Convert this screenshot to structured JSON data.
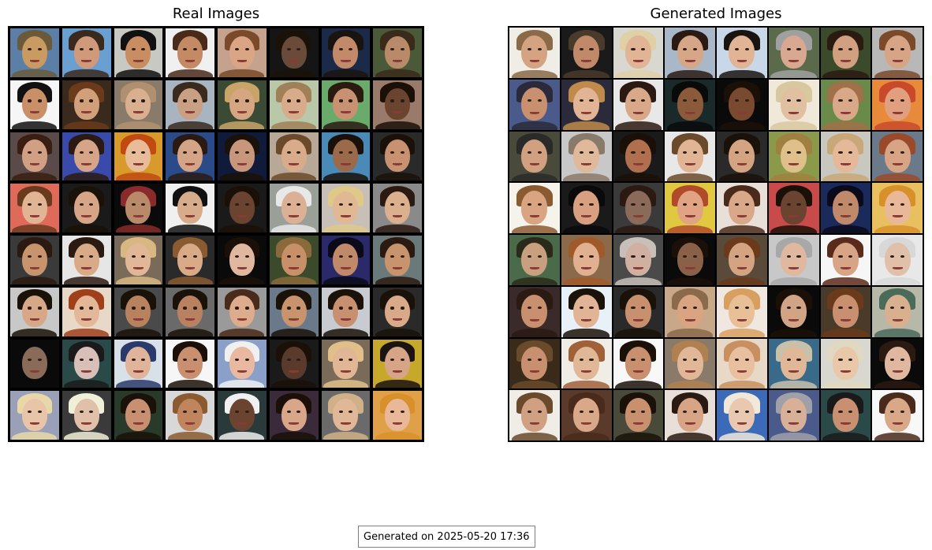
{
  "panels": {
    "real": {
      "title": "Real Images",
      "rows": 8,
      "cols": 8,
      "cells": [
        {
          "bg": "#5b7fa6",
          "skin": "#c99a62",
          "hair": "#6a5a3a"
        },
        {
          "bg": "#6a9fd1",
          "skin": "#d09a7a",
          "hair": "#3a2a1e"
        },
        {
          "bg": "#c9c9c4",
          "skin": "#c98d62",
          "hair": "#111111"
        },
        {
          "bg": "#f0f0f0",
          "skin": "#c38a64",
          "hair": "#4a2a1a"
        },
        {
          "bg": "#c4a28e",
          "skin": "#d9a584",
          "hair": "#7a4a2a"
        },
        {
          "bg": "#151515",
          "skin": "#6a4a38",
          "hair": "#1a1208"
        },
        {
          "bg": "#1c2a4a",
          "skin": "#c38a6a",
          "hair": "#1a1410"
        },
        {
          "bg": "#4a5a38",
          "skin": "#b88a6a",
          "hair": "#3a2a1a"
        },
        {
          "bg": "#f6f6f6",
          "skin": "#c98f66",
          "hair": "#111111"
        },
        {
          "bg": "#3a2a1e",
          "skin": "#d1a07a",
          "hair": "#6a3a1a"
        },
        {
          "bg": "#8a7a6a",
          "skin": "#d8b090",
          "hair": "#b09070"
        },
        {
          "bg": "#a8b4c0",
          "skin": "#c9a084",
          "hair": "#3a2a1e"
        },
        {
          "bg": "#3a4a34",
          "skin": "#d6a682",
          "hair": "#c9a468"
        },
        {
          "bg": "#b8c8a8",
          "skin": "#d8ac8a",
          "hair": "#a08058"
        },
        {
          "bg": "#6aaa6a",
          "skin": "#c89272",
          "hair": "#2a1a10"
        },
        {
          "bg": "#9a7a6a",
          "skin": "#6a442e",
          "hair": "#1a1008"
        },
        {
          "bg": "#5a4a4a",
          "skin": "#d1a084",
          "hair": "#3a1e12"
        },
        {
          "bg": "#3a4aaa",
          "skin": "#d6a486",
          "hair": "#2a1a12"
        },
        {
          "bg": "#d89a2a",
          "skin": "#e8bc98",
          "hair": "#c04a12"
        },
        {
          "bg": "#2a4a8a",
          "skin": "#d4a486",
          "hair": "#2a1a12"
        },
        {
          "bg": "#101a3a",
          "skin": "#c8967a",
          "hair": "#1a1208"
        },
        {
          "bg": "#b8a898",
          "skin": "#d8ac8a",
          "hair": "#6a4a2a"
        },
        {
          "bg": "#4a8ab8",
          "skin": "#9a6a4a",
          "hair": "#1a1008"
        },
        {
          "bg": "#2a2a2a",
          "skin": "#c89272",
          "hair": "#1a1208"
        },
        {
          "bg": "#e06a5a",
          "skin": "#e0b494",
          "hair": "#6a3a1e"
        },
        {
          "bg": "#1a1a1a",
          "skin": "#d6a486",
          "hair": "#1a1208"
        },
        {
          "bg": "#0a0a0a",
          "skin": "#b88a6a",
          "hair": "#8a2a2a"
        },
        {
          "bg": "#f0f0f0",
          "skin": "#d6ac8a",
          "hair": "#111111"
        },
        {
          "bg": "#1a1a1a",
          "skin": "#6a4430",
          "hair": "#1a1008"
        },
        {
          "bg": "#9aa098",
          "skin": "#dcb094",
          "hair": "#e8e8e8"
        },
        {
          "bg": "#c8c0b8",
          "skin": "#e0b894",
          "hair": "#e0c888"
        },
        {
          "bg": "#8a8a8a",
          "skin": "#dab08e",
          "hair": "#2a1a12"
        },
        {
          "bg": "#3a3a3a",
          "skin": "#c8946e",
          "hair": "#2a1a12"
        },
        {
          "bg": "#e6e6e6",
          "skin": "#d8aa88",
          "hair": "#2a1a12"
        },
        {
          "bg": "#7a6a5a",
          "skin": "#e0b898",
          "hair": "#d8b880"
        },
        {
          "bg": "#2a2a2a",
          "skin": "#d8aa88",
          "hair": "#8a5a30"
        },
        {
          "bg": "#0a0a0a",
          "skin": "#e0b8a0",
          "hair": "#1a1008"
        },
        {
          "bg": "#3a4a2a",
          "skin": "#c89068",
          "hair": "#8a6a3a"
        },
        {
          "bg": "#2a2a6a",
          "skin": "#c08a6a",
          "hair": "#0a0a18"
        },
        {
          "bg": "#6a7a7a",
          "skin": "#c8946e",
          "hair": "#2a1a12"
        },
        {
          "bg": "#c8c8c8",
          "skin": "#d6a888",
          "hair": "#1a1208"
        },
        {
          "bg": "#e8d8c8",
          "skin": "#e2b898",
          "hair": "#a0401a"
        },
        {
          "bg": "#4a4a4a",
          "skin": "#b8825e",
          "hair": "#1a1208"
        },
        {
          "bg": "#6a6a6a",
          "skin": "#b88262",
          "hair": "#1a1208"
        },
        {
          "bg": "#9a9a9a",
          "skin": "#dcac8c",
          "hair": "#4a2a1a"
        },
        {
          "bg": "#6a7a8a",
          "skin": "#c8946e",
          "hair": "#1a1208"
        },
        {
          "bg": "#c8ccd0",
          "skin": "#c89070",
          "hair": "#1a1208"
        },
        {
          "bg": "#2a2a2a",
          "skin": "#d8aa8a",
          "hair": "#1a1208"
        },
        {
          "bg": "#0a0a0a",
          "skin": "#8a6a58",
          "hair": "#0a0a0a"
        },
        {
          "bg": "#2a4a4a",
          "skin": "#d8c0b8",
          "hair": "#1a1a1a"
        },
        {
          "bg": "#d8e0e8",
          "skin": "#e0b49a",
          "hair": "#2a3a6a"
        },
        {
          "bg": "#f6f6f6",
          "skin": "#c89070",
          "hair": "#1a1008"
        },
        {
          "bg": "#8aa0c8",
          "skin": "#e8b8a0",
          "hair": "#f0f0f0"
        },
        {
          "bg": "#1a1a1a",
          "skin": "#5a3a2a",
          "hair": "#1a1008"
        },
        {
          "bg": "#7a6a5a",
          "skin": "#e0b694",
          "hair": "#e0c088"
        },
        {
          "bg": "#c8a82a",
          "skin": "#d6a486",
          "hair": "#1a1410"
        },
        {
          "bg": "#9aa0b8",
          "skin": "#e8c4a8",
          "hair": "#e8d8a8"
        },
        {
          "bg": "#3a3a3a",
          "skin": "#e0c0a8",
          "hair": "#f0f0d8"
        },
        {
          "bg": "#2a3a2a",
          "skin": "#c89070",
          "hair": "#1a1208"
        },
        {
          "bg": "#d8d8d8",
          "skin": "#c0845e",
          "hair": "#8a5a30"
        },
        {
          "bg": "#2a3a3a",
          "skin": "#6a4430",
          "hair": "#f0f0f0"
        },
        {
          "bg": "#3a2a3a",
          "skin": "#d8a688",
          "hair": "#1a1008"
        },
        {
          "bg": "#6a6a6a",
          "skin": "#e0b898",
          "hair": "#d0b088"
        },
        {
          "bg": "#e0a048",
          "skin": "#e8b898",
          "hair": "#d8902a"
        }
      ]
    },
    "generated": {
      "title": "Generated Images",
      "rows": 8,
      "cols": 8,
      "cells": [
        {
          "bg": "#f0ece6",
          "skin": "#d4a482",
          "hair": "#8a6a48"
        },
        {
          "bg": "#1a1a1a",
          "skin": "#c08a6a",
          "hair": "#4a3a2a"
        },
        {
          "bg": "#d8d8d0",
          "skin": "#e0b494",
          "hair": "#e0d0a8"
        },
        {
          "bg": "#a8b8c8",
          "skin": "#d6a688",
          "hair": "#2a1a12"
        },
        {
          "bg": "#c8d8e8",
          "skin": "#e0b494",
          "hair": "#1a1410"
        },
        {
          "bg": "#5a6a4a",
          "skin": "#d8a890",
          "hair": "#a0a0a0"
        },
        {
          "bg": "#3a4a2a",
          "skin": "#d0a080",
          "hair": "#2a1a10"
        },
        {
          "bg": "#b8b8b8",
          "skin": "#d8a486",
          "hair": "#7a4a2a"
        },
        {
          "bg": "#4a5a8a",
          "skin": "#c8906e",
          "hair": "#2a2a3a"
        },
        {
          "bg": "#2a2a3a",
          "skin": "#e0b494",
          "hair": "#c08a4a"
        },
        {
          "bg": "#e8e8e8",
          "skin": "#d8a888",
          "hair": "#2a1a12"
        },
        {
          "bg": "#1a2a2a",
          "skin": "#8a5a3a",
          "hair": "#0a0a0a"
        },
        {
          "bg": "#0a0a0a",
          "skin": "#7a4a30",
          "hair": "#1a1008"
        },
        {
          "bg": "#f0e8d8",
          "skin": "#e0c0a0",
          "hair": "#d8c8a0"
        },
        {
          "bg": "#6a8a4a",
          "skin": "#d8a888",
          "hair": "#a07048"
        },
        {
          "bg": "#e88a3a",
          "skin": "#e0a080",
          "hair": "#c84a2a"
        },
        {
          "bg": "#4a4a3a",
          "skin": "#d0a080",
          "hair": "#2a2a2a"
        },
        {
          "bg": "#c8c8c8",
          "skin": "#e0b89a",
          "hair": "#8a7a6a"
        },
        {
          "bg": "#1a1a1a",
          "skin": "#b07050",
          "hair": "#1a1008"
        },
        {
          "bg": "#e8e8e8",
          "skin": "#e0b494",
          "hair": "#6a4a2a"
        },
        {
          "bg": "#2a2a2a",
          "skin": "#d4a482",
          "hair": "#1a1208"
        },
        {
          "bg": "#8a9a4a",
          "skin": "#e0c08a",
          "hair": "#a08040"
        },
        {
          "bg": "#c8c8c0",
          "skin": "#e4b898",
          "hair": "#c8a878"
        },
        {
          "bg": "#6a7a8a",
          "skin": "#d8a486",
          "hair": "#9a4a2a"
        },
        {
          "bg": "#f6f2ec",
          "skin": "#d8a482",
          "hair": "#8a5a30"
        },
        {
          "bg": "#1a1a1a",
          "skin": "#d8a080",
          "hair": "#0a0a0a"
        },
        {
          "bg": "#3a3a3a",
          "skin": "#8a6a58",
          "hair": "#2a1a12"
        },
        {
          "bg": "#e0c840",
          "skin": "#e0a484",
          "hair": "#b04a2a"
        },
        {
          "bg": "#e8e0d8",
          "skin": "#d8a888",
          "hair": "#4a2a1a"
        },
        {
          "bg": "#c84a4a",
          "skin": "#6a4430",
          "hair": "#1a1008"
        },
        {
          "bg": "#1a2a5a",
          "skin": "#c08a6a",
          "hair": "#0a0a1a"
        },
        {
          "bg": "#e8c060",
          "skin": "#e8b898",
          "hair": "#d8902a"
        },
        {
          "bg": "#4a6a4a",
          "skin": "#c8a080",
          "hair": "#2a2a1a"
        },
        {
          "bg": "#8a6a4a",
          "skin": "#e0b090",
          "hair": "#a05a2a"
        },
        {
          "bg": "#4a4a4a",
          "skin": "#d0b0a0",
          "hair": "#c8c0b8"
        },
        {
          "bg": "#0a0a0a",
          "skin": "#8a6048",
          "hair": "#1a1008"
        },
        {
          "bg": "#5a4a3a",
          "skin": "#d4a482",
          "hair": "#6a3a1a"
        },
        {
          "bg": "#c8c8c8",
          "skin": "#e0b8a0",
          "hair": "#a8a8a8"
        },
        {
          "bg": "#f6f6f6",
          "skin": "#d8a486",
          "hair": "#5a2a1a"
        },
        {
          "bg": "#e8e8e8",
          "skin": "#e0c0a8",
          "hair": "#d8d8d8"
        },
        {
          "bg": "#3a2a2a",
          "skin": "#c8906e",
          "hair": "#2a1a12"
        },
        {
          "bg": "#e8f0f8",
          "skin": "#e0b494",
          "hair": "#1a1208"
        },
        {
          "bg": "#2a2a2a",
          "skin": "#c8906e",
          "hair": "#1a1208"
        },
        {
          "bg": "#c8a888",
          "skin": "#d8a482",
          "hair": "#8a6a4a"
        },
        {
          "bg": "#f0e8e0",
          "skin": "#e8c098",
          "hair": "#d8a060"
        },
        {
          "bg": "#0a0a0a",
          "skin": "#d0a484",
          "hair": "#1a1008"
        },
        {
          "bg": "#4a3a2a",
          "skin": "#c89070",
          "hair": "#6a3a1a"
        },
        {
          "bg": "#b8b8a8",
          "skin": "#d8b090",
          "hair": "#4a6a5a"
        },
        {
          "bg": "#3a2a1a",
          "skin": "#c8906e",
          "hair": "#6a4a2a"
        },
        {
          "bg": "#f0ece6",
          "skin": "#e0b898",
          "hair": "#a06038"
        },
        {
          "bg": "#f8f8f8",
          "skin": "#c8906e",
          "hair": "#1a1008"
        },
        {
          "bg": "#8a7a6a",
          "skin": "#e0b898",
          "hair": "#b08050"
        },
        {
          "bg": "#e8d8c8",
          "skin": "#e8c0a0",
          "hair": "#c89060"
        },
        {
          "bg": "#3a6a8a",
          "skin": "#e0b898",
          "hair": "#c8c0a8"
        },
        {
          "bg": "#d8d8d0",
          "skin": "#e8c8a8",
          "hair": "#e0d8c0"
        },
        {
          "bg": "#0a0a0a",
          "skin": "#e0b8a0",
          "hair": "#2a1a12"
        },
        {
          "bg": "#f0ece6",
          "skin": "#d0a082",
          "hair": "#6a4a2a"
        },
        {
          "bg": "#5a3a2a",
          "skin": "#d8a888",
          "hair": "#4a2a1a"
        },
        {
          "bg": "#4a4a3a",
          "skin": "#c8906e",
          "hair": "#1a1208"
        },
        {
          "bg": "#e8e0d8",
          "skin": "#d8a486",
          "hair": "#2a1a12"
        },
        {
          "bg": "#3a6ab8",
          "skin": "#e8c8b0",
          "hair": "#f0e8d8"
        },
        {
          "bg": "#4a5a8a",
          "skin": "#d8b098",
          "hair": "#a0a0a8"
        },
        {
          "bg": "#2a4a4a",
          "skin": "#c89070",
          "hair": "#1a1a1a"
        },
        {
          "bg": "#f8f8f8",
          "skin": "#d8a888",
          "hair": "#4a2a1a"
        }
      ]
    }
  },
  "footer": {
    "text": "Generated on 2025-05-20 17:36"
  }
}
